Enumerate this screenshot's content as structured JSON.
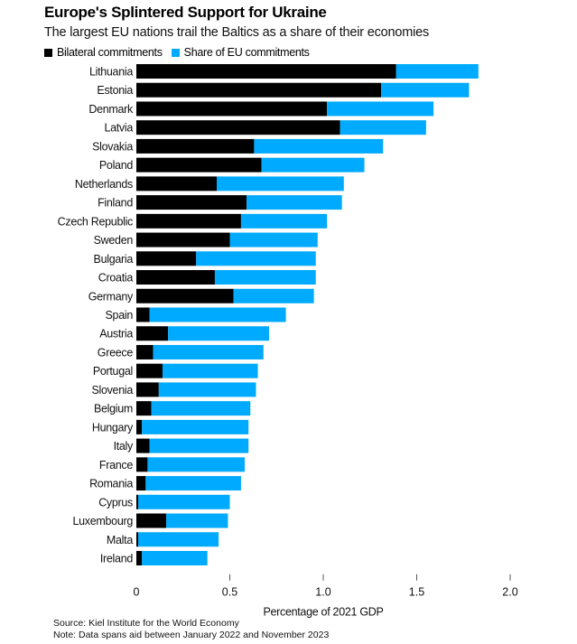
{
  "chart_data": {
    "type": "bar",
    "orientation": "horizontal",
    "stacked": true,
    "title": "Europe's Splintered Support for Ukraine",
    "subtitle": "The largest EU nations trail the Baltics as a share of their economies",
    "xlabel": "Percentage of 2021 GDP",
    "ylabel": "",
    "xlim": [
      0,
      2.0
    ],
    "xticks": [
      0,
      0.5,
      1.0,
      1.5,
      2.0
    ],
    "xtick_labels": [
      "0",
      "0.5",
      "1.0",
      "1.5",
      "2.0"
    ],
    "grid": false,
    "legend_position": "top-left",
    "categories": [
      "Lithuania",
      "Estonia",
      "Denmark",
      "Latvia",
      "Slovakia",
      "Poland",
      "Netherlands",
      "Finland",
      "Czech Republic",
      "Sweden",
      "Bulgaria",
      "Croatia",
      "Germany",
      "Spain",
      "Austria",
      "Greece",
      "Portugal",
      "Slovenia",
      "Belgium",
      "Hungary",
      "Italy",
      "France",
      "Romania",
      "Cyprus",
      "Luxembourg",
      "Malta",
      "Ireland"
    ],
    "series": [
      {
        "name": "Bilateral commitments",
        "color": "#000000",
        "values": [
          1.39,
          1.31,
          1.02,
          1.09,
          0.63,
          0.67,
          0.43,
          0.59,
          0.56,
          0.5,
          0.32,
          0.42,
          0.52,
          0.07,
          0.17,
          0.09,
          0.14,
          0.12,
          0.08,
          0.03,
          0.07,
          0.06,
          0.05,
          0.01,
          0.16,
          0.01,
          0.03
        ]
      },
      {
        "name": "Share of EU commitments",
        "color": "#00aaff",
        "values": [
          0.44,
          0.47,
          0.57,
          0.46,
          0.69,
          0.55,
          0.68,
          0.51,
          0.46,
          0.47,
          0.64,
          0.54,
          0.43,
          0.73,
          0.54,
          0.59,
          0.51,
          0.52,
          0.53,
          0.57,
          0.53,
          0.52,
          0.51,
          0.49,
          0.33,
          0.43,
          0.35
        ]
      }
    ]
  },
  "footer": {
    "source": "Source: Kiel Institute for the World Economy",
    "note": "Note: Data spans aid between January 2022 and November 2023"
  }
}
